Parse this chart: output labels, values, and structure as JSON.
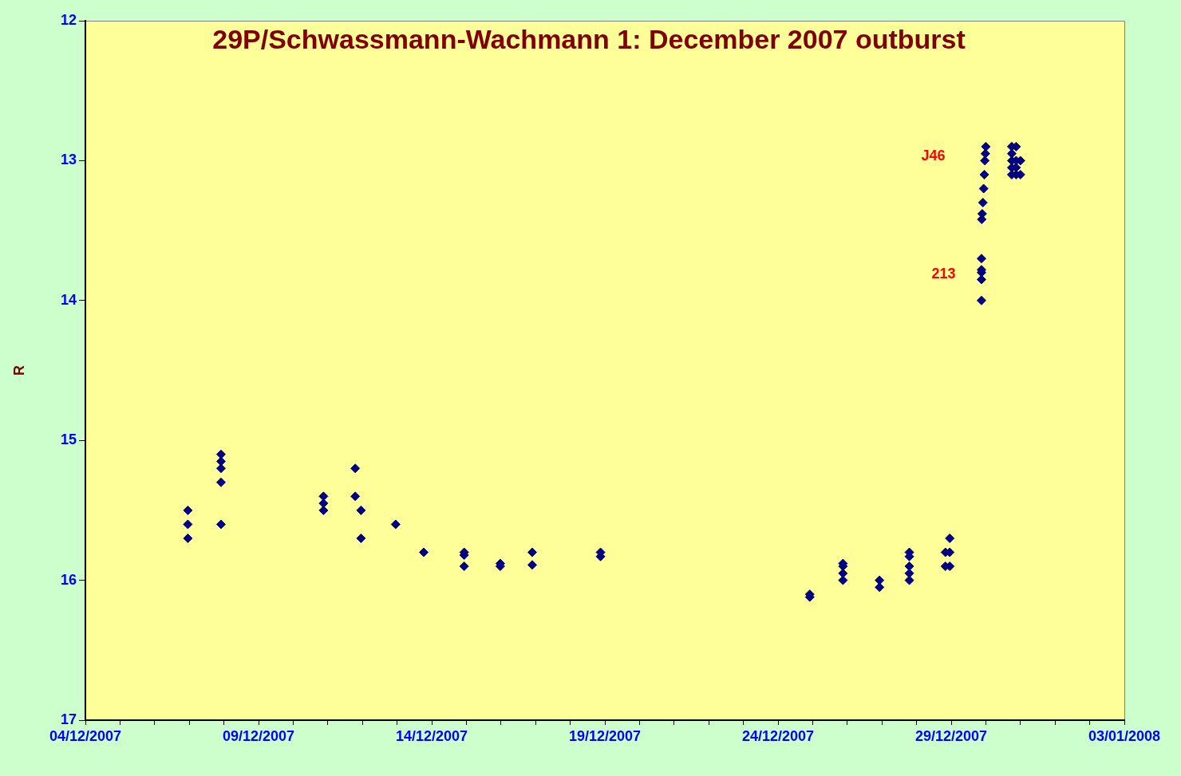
{
  "chart_data": {
    "type": "scatter",
    "title": "29P/Schwassmann-Wachmann 1: December 2007 outburst",
    "ylabel": "R",
    "marker": "diamond",
    "grid": false,
    "legend": false,
    "xlim": [
      "2007-12-04",
      "2008-01-03"
    ],
    "xticks": [
      {
        "value": "2007-12-04",
        "label": "04/12/2007"
      },
      {
        "value": "2007-12-05",
        "label": null
      },
      {
        "value": "2007-12-06",
        "label": null
      },
      {
        "value": "2007-12-07",
        "label": null
      },
      {
        "value": "2007-12-08",
        "label": null
      },
      {
        "value": "2007-12-09",
        "label": "09/12/2007"
      },
      {
        "value": "2007-12-10",
        "label": null
      },
      {
        "value": "2007-12-11",
        "label": null
      },
      {
        "value": "2007-12-12",
        "label": null
      },
      {
        "value": "2007-12-13",
        "label": null
      },
      {
        "value": "2007-12-14",
        "label": "14/12/2007"
      },
      {
        "value": "2007-12-15",
        "label": null
      },
      {
        "value": "2007-12-16",
        "label": null
      },
      {
        "value": "2007-12-17",
        "label": null
      },
      {
        "value": "2007-12-18",
        "label": null
      },
      {
        "value": "2007-12-19",
        "label": "19/12/2007"
      },
      {
        "value": "2007-12-20",
        "label": null
      },
      {
        "value": "2007-12-21",
        "label": null
      },
      {
        "value": "2007-12-22",
        "label": null
      },
      {
        "value": "2007-12-23",
        "label": null
      },
      {
        "value": "2007-12-24",
        "label": "24/12/2007"
      },
      {
        "value": "2007-12-25",
        "label": null
      },
      {
        "value": "2007-12-26",
        "label": null
      },
      {
        "value": "2007-12-27",
        "label": null
      },
      {
        "value": "2007-12-28",
        "label": null
      },
      {
        "value": "2007-12-29",
        "label": "29/12/2007"
      },
      {
        "value": "2007-12-30",
        "label": null
      },
      {
        "value": "2007-12-31",
        "label": null
      },
      {
        "value": "2008-01-01",
        "label": null
      },
      {
        "value": "2008-01-02",
        "label": null
      },
      {
        "value": "2008-01-03",
        "label": "03/01/2008"
      }
    ],
    "ylim": [
      17,
      12
    ],
    "yticks": [
      12,
      13,
      14,
      15,
      16,
      17
    ],
    "annotations": [
      "J46",
      "213"
    ],
    "series": [
      {
        "color": "#000080",
        "x": [
          "2007-12-06T23:00",
          "2007-12-06T23:00",
          "2007-12-06T23:00",
          "2007-12-07T22:00",
          "2007-12-07T22:00",
          "2007-12-07T22:00",
          "2007-12-07T22:00",
          "2007-12-07T22:00",
          "2007-12-10T21:00",
          "2007-12-10T21:00",
          "2007-12-10T21:00",
          "2007-12-11T19:00",
          "2007-12-11T19:00",
          "2007-12-11T23:00",
          "2007-12-11T23:00",
          "2007-12-12T23:00",
          "2007-12-13T18:30",
          "2007-12-14T22:30",
          "2007-12-14T22:30",
          "2007-12-14T22:30",
          "2007-12-15T23:30",
          "2007-12-15T23:30",
          "2007-12-16T21:40",
          "2007-12-16T21:40",
          "2007-12-18T21:00",
          "2007-12-18T21:00",
          "2007-12-24T22:00",
          "2007-12-24T22:00",
          "2007-12-25T21:00",
          "2007-12-25T21:00",
          "2007-12-25T21:00",
          "2007-12-25T21:00",
          "2007-12-26T22:20",
          "2007-12-26T22:20",
          "2007-12-27T19:00",
          "2007-12-27T19:00",
          "2007-12-27T19:00",
          "2007-12-27T19:00",
          "2007-12-27T19:00",
          "2007-12-28T20:00",
          "2007-12-28T20:00",
          "2007-12-28T23:00",
          "2007-12-28T23:00",
          "2007-12-28T23:00",
          "2007-12-29T21:00",
          "2007-12-29T21:00",
          "2007-12-29T21:00",
          "2007-12-29T21:00",
          "2007-12-29T21:00",
          "2007-12-29T21:10",
          "2007-12-29T21:30",
          "2007-12-29T22:00",
          "2007-12-29T22:30",
          "2007-12-29T23:00",
          "2007-12-29T23:20",
          "2007-12-29T23:40",
          "2007-12-30T00:00",
          "2007-12-30T18:00",
          "2007-12-30T18:00",
          "2007-12-30T18:00",
          "2007-12-30T18:00",
          "2007-12-30T18:00",
          "2007-12-30T21:00",
          "2007-12-30T21:00",
          "2007-12-30T21:00",
          "2007-12-30T21:00",
          "2007-12-31T00:00",
          "2007-12-31T00:00"
        ],
        "values": [
          15.5,
          15.6,
          15.7,
          15.1,
          15.15,
          15.2,
          15.3,
          15.6,
          15.4,
          15.45,
          15.5,
          15.2,
          15.4,
          15.5,
          15.7,
          15.6,
          15.8,
          15.8,
          15.82,
          15.9,
          15.88,
          15.9,
          15.8,
          15.89,
          15.8,
          15.83,
          16.1,
          16.12,
          15.88,
          15.9,
          15.95,
          16.0,
          16.0,
          16.05,
          15.8,
          15.83,
          15.9,
          15.95,
          16.0,
          15.8,
          15.9,
          15.7,
          15.8,
          15.9,
          14.0,
          13.85,
          13.8,
          13.78,
          13.7,
          13.42,
          13.38,
          13.3,
          13.2,
          13.1,
          13.0,
          12.95,
          12.9,
          12.9,
          12.95,
          13.0,
          13.05,
          13.1,
          12.9,
          13.0,
          13.05,
          13.1,
          13.0,
          13.1
        ]
      }
    ]
  }
}
